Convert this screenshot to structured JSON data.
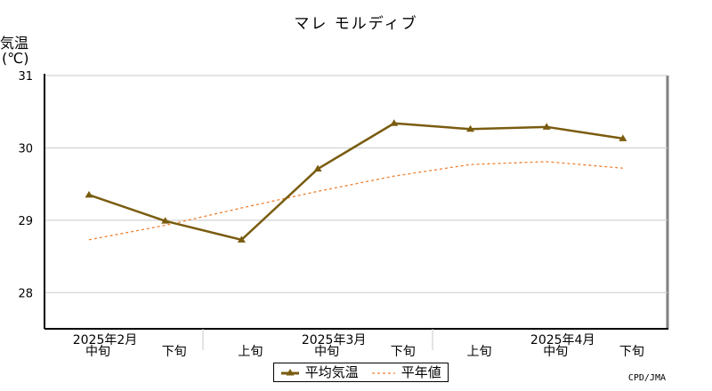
{
  "title": "マレ モルディブ",
  "credit": "CPD/JMA",
  "colors": {
    "observed": "#7a5c10",
    "normal": "#f08030",
    "grid": "#c8c8c8",
    "axis": "#808080"
  },
  "chart_data": {
    "type": "line",
    "title": "マレ モルディブ",
    "ylabel": "気温",
    "yunit": "(℃)",
    "ylim": [
      27.5,
      31
    ],
    "yticks": [
      28,
      29,
      30,
      31
    ],
    "categories": [
      "2025年2月中旬",
      "2025年2月下旬",
      "2025年3月上旬",
      "2025年3月中旬",
      "2025年3月下旬",
      "2025年4月上旬",
      "2025年4月中旬",
      "2025年4月下旬"
    ],
    "xtick_top": [
      "2025年2月",
      "",
      "",
      "2025年3月",
      "",
      "",
      "2025年4月",
      ""
    ],
    "xtick_bottom": [
      "中旬",
      "下旬",
      "上旬",
      "中旬",
      "下旬",
      "上旬",
      "中旬",
      "下旬"
    ],
    "series": [
      {
        "name": "平均気温",
        "style": "solid-triangle",
        "values": [
          29.35,
          28.99,
          28.73,
          29.71,
          30.34,
          30.26,
          30.29,
          30.13
        ]
      },
      {
        "name": "平年値",
        "style": "dashed",
        "values": [
          28.73,
          28.93,
          29.17,
          29.4,
          29.61,
          29.77,
          29.81,
          29.72
        ]
      }
    ],
    "legend": "bottom-center",
    "grid": true
  }
}
